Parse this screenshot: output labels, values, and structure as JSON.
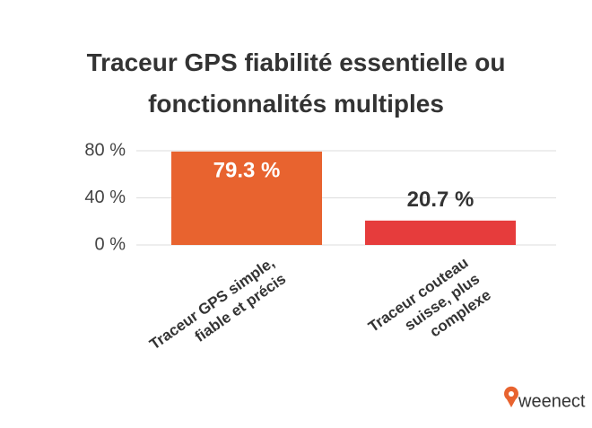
{
  "chart_data": {
    "type": "bar",
    "title": "Traceur GPS fiabilité essentielle ou\nfonctionnalités multiples",
    "categories": [
      "Traceur GPS simple,\nfiable et précis",
      "Traceur couteau\nsuisse, plus\ncomplexe"
    ],
    "values": [
      79.3,
      20.7
    ],
    "value_labels": [
      "79.3 %",
      "20.7 %"
    ],
    "colors": [
      "#e8632f",
      "#e63c3c"
    ],
    "ylim": [
      0,
      80
    ],
    "yticks": [
      {
        "value": 0,
        "label": "0 %"
      },
      {
        "value": 40,
        "label": "40 %"
      },
      {
        "value": 80,
        "label": "80 %"
      }
    ],
    "grid": true
  },
  "logo": "weenect"
}
